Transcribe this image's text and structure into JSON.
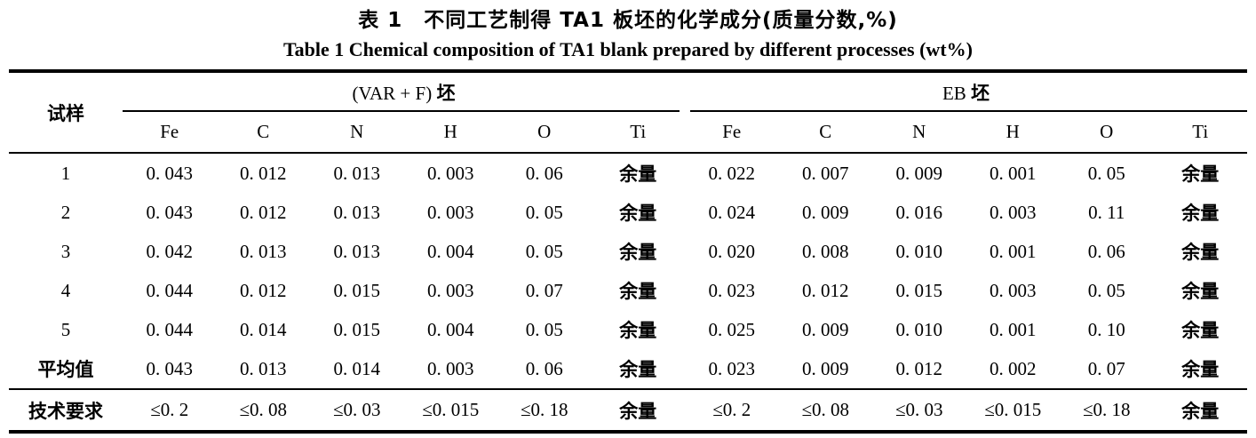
{
  "title": {
    "zh": "表 1　不同工艺制得 TA1 板坯的化学成分(质量分数,%)",
    "en": "Table 1   Chemical composition of TA1 blank prepared by different processes (wt%)"
  },
  "table": {
    "sample_header": "试样",
    "groups": [
      {
        "label_latin": "(VAR + F)",
        "label_cjk": "坯",
        "columns": [
          "Fe",
          "C",
          "N",
          "H",
          "O",
          "Ti"
        ]
      },
      {
        "label_latin": "EB",
        "label_cjk": "坯",
        "columns": [
          "Fe",
          "C",
          "N",
          "H",
          "O",
          "Ti"
        ]
      }
    ],
    "rows": [
      [
        "1",
        "0. 043",
        "0. 012",
        "0. 013",
        "0. 003",
        "0. 06",
        "余量",
        "0. 022",
        "0. 007",
        "0. 009",
        "0. 001",
        "0. 05",
        "余量"
      ],
      [
        "2",
        "0. 043",
        "0. 012",
        "0. 013",
        "0. 003",
        "0. 05",
        "余量",
        "0. 024",
        "0. 009",
        "0. 016",
        "0. 003",
        "0. 11",
        "余量"
      ],
      [
        "3",
        "0. 042",
        "0. 013",
        "0. 013",
        "0. 004",
        "0. 05",
        "余量",
        "0. 020",
        "0. 008",
        "0. 010",
        "0. 001",
        "0. 06",
        "余量"
      ],
      [
        "4",
        "0. 044",
        "0. 012",
        "0. 015",
        "0. 003",
        "0. 07",
        "余量",
        "0. 023",
        "0. 012",
        "0. 015",
        "0. 003",
        "0. 05",
        "余量"
      ],
      [
        "5",
        "0. 044",
        "0. 014",
        "0. 015",
        "0. 004",
        "0. 05",
        "余量",
        "0. 025",
        "0. 009",
        "0. 010",
        "0. 001",
        "0. 10",
        "余量"
      ],
      [
        "平均值",
        "0. 043",
        "0. 013",
        "0. 014",
        "0. 003",
        "0. 06",
        "余量",
        "0. 023",
        "0. 009",
        "0. 012",
        "0. 002",
        "0. 07",
        "余量"
      ],
      [
        "技术要求",
        "≤0. 2",
        "≤0. 08",
        "≤0. 03",
        "≤0. 015",
        "≤0. 18",
        "余量",
        "≤0. 2",
        "≤0. 08",
        "≤0. 03",
        "≤0. 015",
        "≤0. 18",
        "余量"
      ]
    ]
  }
}
